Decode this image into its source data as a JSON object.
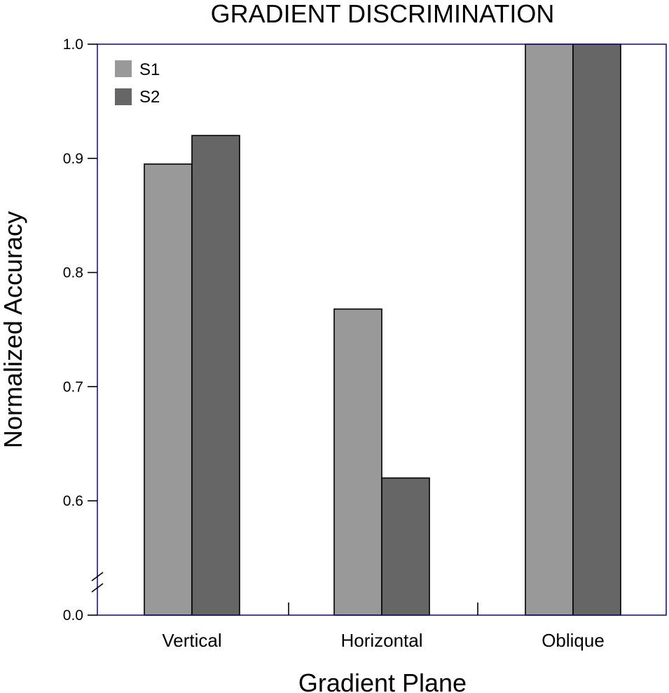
{
  "chart_data": {
    "type": "bar",
    "title": "GRADIENT DISCRIMINATION",
    "xlabel": "Gradient Plane",
    "ylabel": "Normalized Accuracy",
    "categories": [
      "Vertical",
      "Horizontal",
      "Oblique"
    ],
    "series": [
      {
        "name": "S1",
        "values": [
          0.895,
          0.768,
          1.0
        ]
      },
      {
        "name": "S2",
        "values": [
          0.92,
          0.62,
          1.0
        ]
      }
    ],
    "ylim": [
      0.0,
      1.0
    ],
    "y_axis_break": [
      0.0,
      0.5
    ],
    "yticks": [
      {
        "value": 0.0,
        "label": "0.0"
      },
      {
        "value": 0.6,
        "label": "0.6"
      },
      {
        "value": 0.7,
        "label": "0.7"
      },
      {
        "value": 0.8,
        "label": "0.8"
      },
      {
        "value": 0.9,
        "label": "0.9"
      },
      {
        "value": 1.0,
        "label": "1.0"
      }
    ],
    "grid": false,
    "legend_position": "top-left"
  },
  "colors": {
    "S1": "#999999",
    "S2": "#666666",
    "frame": "#1c1a6e",
    "bar_edge": "#000000"
  }
}
